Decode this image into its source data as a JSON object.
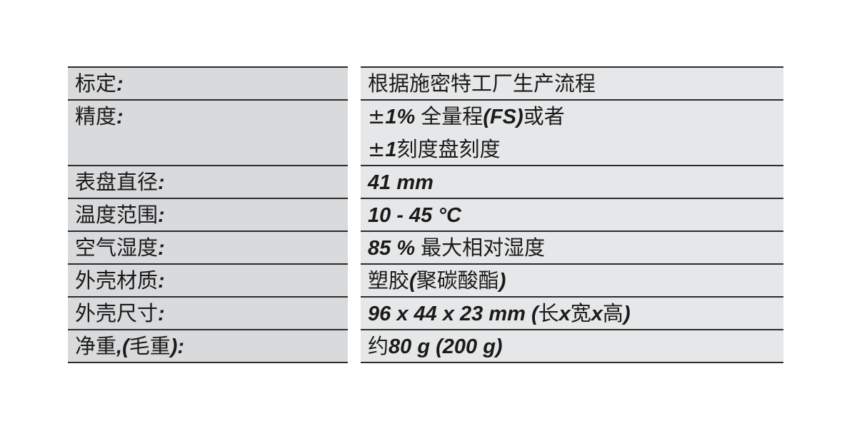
{
  "rows": [
    {
      "label": [
        {
          "t": "标定"
        },
        {
          "t": ":",
          "b": true
        }
      ],
      "value": [
        [
          {
            "t": "根据施密特工厂生产流程"
          }
        ]
      ]
    },
    {
      "label": [
        {
          "t": "精度"
        },
        {
          "t": ":",
          "b": true
        }
      ],
      "value": [
        [
          {
            "t": "±"
          },
          {
            "t": "1% ",
            "b": true
          },
          {
            "t": "全量程"
          },
          {
            "t": "(FS)",
            "b": true
          },
          {
            "t": "或者"
          }
        ],
        [
          {
            "t": "±"
          },
          {
            "t": "1",
            "b": true
          },
          {
            "t": "刻度盘刻度"
          }
        ]
      ]
    },
    {
      "label": [
        {
          "t": "表盘直径"
        },
        {
          "t": ":",
          "b": true
        }
      ],
      "value": [
        [
          {
            "t": "41 mm",
            "b": true
          }
        ]
      ]
    },
    {
      "label": [
        {
          "t": "温度范围"
        },
        {
          "t": ":",
          "b": true
        }
      ],
      "value": [
        [
          {
            "t": "10 - 45 °C",
            "b": true
          }
        ]
      ]
    },
    {
      "label": [
        {
          "t": "空气湿度"
        },
        {
          "t": ":",
          "b": true
        }
      ],
      "value": [
        [
          {
            "t": "85 % ",
            "b": true
          },
          {
            "t": "最大相对湿度"
          }
        ]
      ]
    },
    {
      "label": [
        {
          "t": "外壳材质"
        },
        {
          "t": ":",
          "b": true
        }
      ],
      "value": [
        [
          {
            "t": "塑胶"
          },
          {
            "t": "(",
            "b": true
          },
          {
            "t": "聚碳酸酯"
          },
          {
            "t": ")",
            "b": true
          }
        ]
      ]
    },
    {
      "label": [
        {
          "t": "外壳尺寸"
        },
        {
          "t": ":",
          "b": true
        }
      ],
      "value": [
        [
          {
            "t": "96 x 44 x 23 mm (",
            "b": true
          },
          {
            "t": "长"
          },
          {
            "t": "x",
            "b": true
          },
          {
            "t": "宽"
          },
          {
            "t": "x",
            "b": true
          },
          {
            "t": "高"
          },
          {
            "t": ")",
            "b": true
          }
        ]
      ]
    },
    {
      "label": [
        {
          "t": "净重"
        },
        {
          "t": ",(",
          "b": true
        },
        {
          "t": "毛重"
        },
        {
          "t": "):",
          "b": true
        }
      ],
      "value": [
        [
          {
            "t": "约"
          },
          {
            "t": "80 g (200 g)",
            "b": true
          }
        ]
      ]
    }
  ]
}
